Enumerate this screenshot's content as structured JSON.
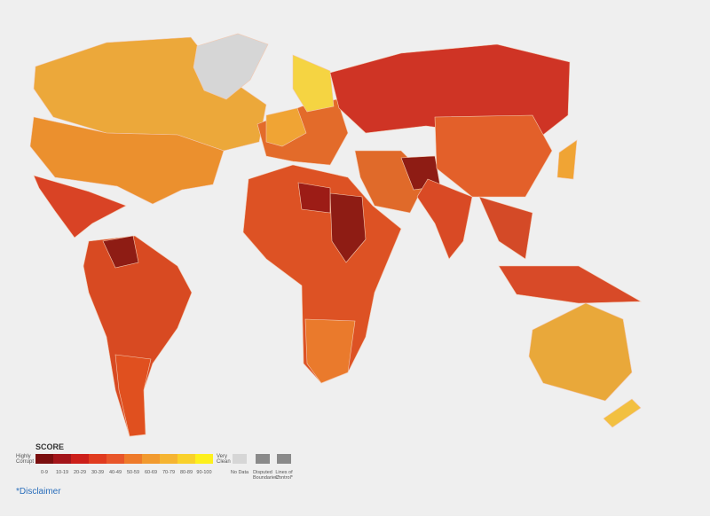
{
  "legend": {
    "title": "SCORE",
    "low_label": "Highly Corrupt",
    "high_label": "Very Clean",
    "bins": [
      {
        "label": "0-9",
        "color": "#7a0e0e"
      },
      {
        "label": "10-19",
        "color": "#a3151a"
      },
      {
        "label": "20-29",
        "color": "#cc1f1a"
      },
      {
        "label": "30-39",
        "color": "#e03b1f"
      },
      {
        "label": "40-49",
        "color": "#e8562a"
      },
      {
        "label": "50-59",
        "color": "#ee7a2a"
      },
      {
        "label": "60-69",
        "color": "#f19a2f"
      },
      {
        "label": "70-79",
        "color": "#f5b431"
      },
      {
        "label": "80-89",
        "color": "#f9d12b"
      },
      {
        "label": "90-100",
        "color": "#fdf01d"
      }
    ],
    "other": [
      {
        "label": "No Data",
        "color": "#d6d6d6"
      },
      {
        "label": "Disputed Boundaries*",
        "color": "#8a8a8a"
      },
      {
        "label": "Lines of Control*",
        "color": "#8a8a8a"
      }
    ]
  },
  "disclaimer": "*Disclaimer"
}
